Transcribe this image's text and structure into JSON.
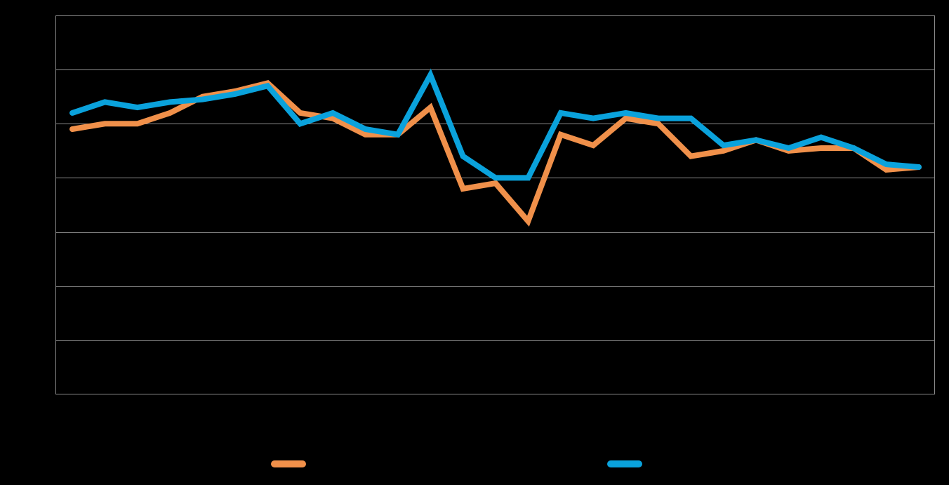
{
  "colors": {
    "background": "#000000",
    "grid": "#8c8c8c",
    "series_orange": "#f0904a",
    "series_blue": "#0aa2dc"
  },
  "chart_data": {
    "type": "line",
    "title": "",
    "xlabel": "",
    "ylabel": "",
    "ylim": [
      0,
      7
    ],
    "gridlines": [
      1,
      2,
      3,
      4,
      5,
      6
    ],
    "grid": true,
    "legend_position": "bottom",
    "x": [
      1,
      2,
      3,
      4,
      5,
      6,
      7,
      8,
      9,
      10,
      11,
      12,
      13,
      14,
      15,
      16,
      17,
      18,
      19,
      20,
      21,
      22,
      23,
      24,
      25,
      26,
      27
    ],
    "series": [
      {
        "color": "#f0904a",
        "values": [
          4.9,
          5.0,
          5.0,
          5.2,
          5.5,
          5.6,
          5.75,
          5.2,
          5.1,
          4.8,
          4.8,
          5.3,
          3.8,
          3.9,
          3.2,
          4.8,
          4.6,
          5.1,
          5.0,
          4.4,
          4.5,
          4.7,
          4.5,
          4.55,
          4.55,
          4.15,
          4.2
        ]
      },
      {
        "color": "#0aa2dc",
        "values": [
          5.2,
          5.4,
          5.3,
          5.4,
          5.45,
          5.55,
          5.7,
          5.0,
          5.2,
          4.9,
          4.8,
          5.9,
          4.4,
          4.0,
          4.0,
          5.2,
          5.1,
          5.2,
          5.1,
          5.1,
          4.6,
          4.7,
          4.55,
          4.75,
          4.55,
          4.25,
          4.2
        ]
      }
    ]
  }
}
